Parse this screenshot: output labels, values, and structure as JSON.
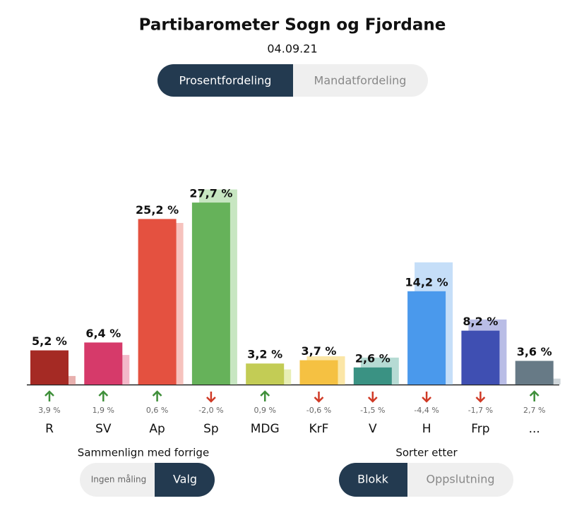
{
  "chart_data": {
    "type": "bar",
    "title": "Partibarometer Sogn og Fjordane",
    "subtitle": "04.09.21",
    "categories": [
      "R",
      "SV",
      "Ap",
      "Sp",
      "MDG",
      "KrF",
      "V",
      "H",
      "Frp",
      "..."
    ],
    "values": [
      5.2,
      6.4,
      25.2,
      27.7,
      3.2,
      3.7,
      2.6,
      14.2,
      8.2,
      3.6
    ],
    "value_labels": [
      "5,2 %",
      "6,4 %",
      "25,2 %",
      "27,7 %",
      "3,2 %",
      "3,7 %",
      "2,6 %",
      "14,2 %",
      "8,2 %",
      "3,6 %"
    ],
    "previous": [
      1.3,
      4.5,
      24.6,
      29.7,
      2.3,
      4.3,
      4.1,
      18.6,
      9.9,
      0.9
    ],
    "change": [
      3.9,
      1.9,
      0.6,
      -2.0,
      0.9,
      -0.6,
      -1.5,
      -4.4,
      -1.7,
      2.7
    ],
    "change_labels": [
      "3,9 %",
      "1,9 %",
      "0,6 %",
      "-2,0 %",
      "0,9 %",
      "-0,6 %",
      "-1,5 %",
      "-4,4 %",
      "-1,7 %",
      "2,7 %"
    ],
    "colors": [
      "#a52a24",
      "#d63a6a",
      "#e45140",
      "#66b25a",
      "#c3cc55",
      "#f5c142",
      "#3a9283",
      "#4a99ec",
      "#3f4fb2",
      "#677a86"
    ],
    "previous_colors": [
      "#e8b0ae",
      "#f3b8c9",
      "#f6c2bd",
      "#c7e6c1",
      "#e8eeb5",
      "#fbe6a6",
      "#b6dbd4",
      "#c5def8",
      "#b9bde6",
      "#cfd6da"
    ],
    "up_color": "#3f8f3a",
    "down_color": "#d03a26"
  },
  "controls": {
    "view": [
      "Prosentfordeling",
      "Mandatfordeling"
    ],
    "compare_label": "Sammenlign med forrige",
    "compare": [
      "Ingen måling",
      "Valg"
    ],
    "sort_label": "Sorter etter",
    "sort": [
      "Blokk",
      "Oppslutning"
    ]
  }
}
